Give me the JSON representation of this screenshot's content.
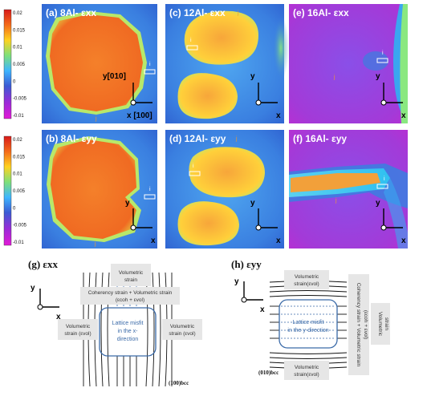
{
  "colorbar": {
    "ticks": [
      "0.02",
      "0.015",
      "0.01",
      "0.005",
      "0",
      "-0.005",
      "-0.01"
    ],
    "colors": [
      "#d81a1a",
      "#f46a1a",
      "#ffd21f",
      "#7ee07a",
      "#3fb6ff",
      "#3b5bd4",
      "#9a2bd8",
      "#e21ad6"
    ]
  },
  "panels": [
    {
      "label": "(a) 8Al- εxx",
      "axis_y": "y[010]",
      "axis_x": "x [100]",
      "marker": "i",
      "marker2": "j"
    },
    {
      "label": "(c) 12Al- εxx",
      "axis_y": "y",
      "axis_x": "x",
      "marker": "i",
      "marker2": "j"
    },
    {
      "label": "(e) 16Al- εxx",
      "axis_y": "y",
      "axis_x": "x",
      "marker": "i",
      "marker2": "j"
    },
    {
      "label": "(b) 8Al- εyy",
      "axis_y": "y",
      "axis_x": "x",
      "marker": "i",
      "marker2": "j"
    },
    {
      "label": "(d) 12Al- εyy",
      "axis_y": "y",
      "axis_x": "x",
      "marker": "i",
      "marker2": "j"
    },
    {
      "label": "(f) 16Al- εyy",
      "axis_y": "y",
      "axis_x": "x",
      "marker": "i",
      "marker2": "j"
    }
  ],
  "schematic_g": {
    "title": "(g) εxx",
    "axis_y": "y",
    "axis_x": "x",
    "vol_top_1": "Volumetric",
    "vol_top_2": "strain",
    "coherency": "Coherency strain + Volumetric strain",
    "coherency_formula": "(εcoh + εvol)",
    "vol_left_1": "Volumetric",
    "vol_left_2": "strain (εvol)",
    "vol_right_1": "Volumetric",
    "vol_right_2": "strain (εvol)",
    "center_1": "Lattice misfit",
    "center_2": "in the x-",
    "center_3": "direction",
    "plane": "(100)bcc"
  },
  "schematic_h": {
    "title": "(h) εyy",
    "axis_y": "y",
    "axis_x": "x",
    "vol_top_1": "Volumetric",
    "vol_top_2": "strain(εvol)",
    "vol_bottom_1": "Volumetric",
    "vol_bottom_2": "strain(εvol)",
    "coherency": "Coherency strain + Volumetric strain",
    "coherency_formula": "(εcoh + εvol)",
    "vol_right_1": "Volumetric",
    "vol_right_2": "strain",
    "center_1": "Lattice misfit",
    "center_2": "in the y-direction",
    "plane": "(010)bcc"
  }
}
